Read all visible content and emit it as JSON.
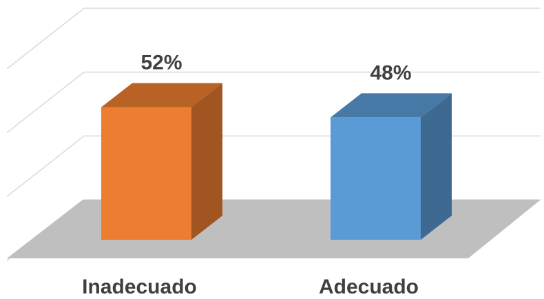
{
  "chart_data": {
    "type": "bar3d",
    "categories": [
      "Inadecuado",
      "Adecuado"
    ],
    "values": [
      52,
      48
    ],
    "value_labels": [
      "52%",
      "48%"
    ],
    "colors": [
      "#ed7d31",
      "#5b9bd5"
    ],
    "ylim": [
      0,
      90
    ],
    "yticks": [
      0,
      30,
      60,
      90
    ],
    "grid": true
  }
}
